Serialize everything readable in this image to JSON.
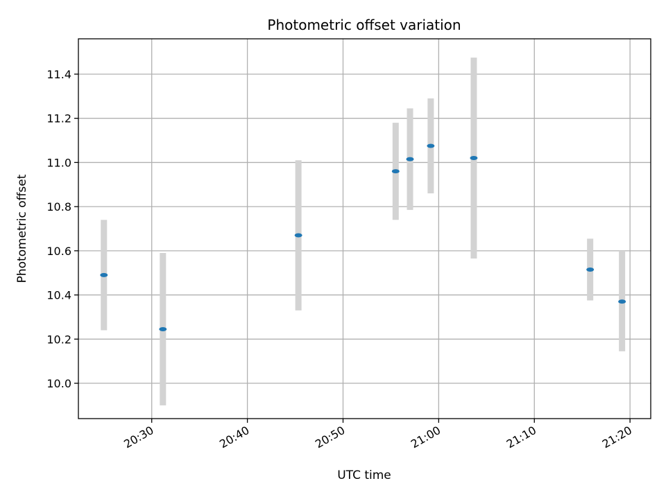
{
  "chart_data": {
    "type": "scatter",
    "title": "Photometric offset variation",
    "xlabel": "UTC time",
    "ylabel": "Photometric offset",
    "x_tick_labels": [
      "20:30",
      "20:40",
      "20:50",
      "21:00",
      "21:10",
      "21:20"
    ],
    "y_tick_labels": [
      "10.0",
      "10.2",
      "10.4",
      "10.6",
      "10.8",
      "11.0",
      "11.2",
      "11.4"
    ],
    "xlim": [
      "20:22:20",
      "21:22:10"
    ],
    "ylim": [
      9.84,
      11.56
    ],
    "grid": true,
    "points": [
      {
        "x": "20:25:00",
        "y": 10.49,
        "err_low": 10.24,
        "err_high": 10.74
      },
      {
        "x": "20:31:10",
        "y": 10.245,
        "err_low": 9.9,
        "err_high": 10.59
      },
      {
        "x": "20:45:20",
        "y": 10.67,
        "err_low": 10.33,
        "err_high": 11.01
      },
      {
        "x": "20:55:30",
        "y": 10.96,
        "err_low": 10.74,
        "err_high": 11.18
      },
      {
        "x": "20:57:00",
        "y": 11.015,
        "err_low": 10.785,
        "err_high": 11.245
      },
      {
        "x": "20:59:10",
        "y": 11.075,
        "err_low": 10.86,
        "err_high": 11.29
      },
      {
        "x": "21:03:40",
        "y": 11.02,
        "err_low": 10.565,
        "err_high": 11.475
      },
      {
        "x": "21:15:50",
        "y": 10.515,
        "err_low": 10.375,
        "err_high": 10.655
      },
      {
        "x": "21:19:10",
        "y": 10.37,
        "err_low": 10.145,
        "err_high": 10.6
      }
    ],
    "colors": {
      "marker": "#1f77b4",
      "errorbar": "#d3d3d3",
      "grid": "#b0b0b0",
      "axes": "#000000"
    }
  }
}
